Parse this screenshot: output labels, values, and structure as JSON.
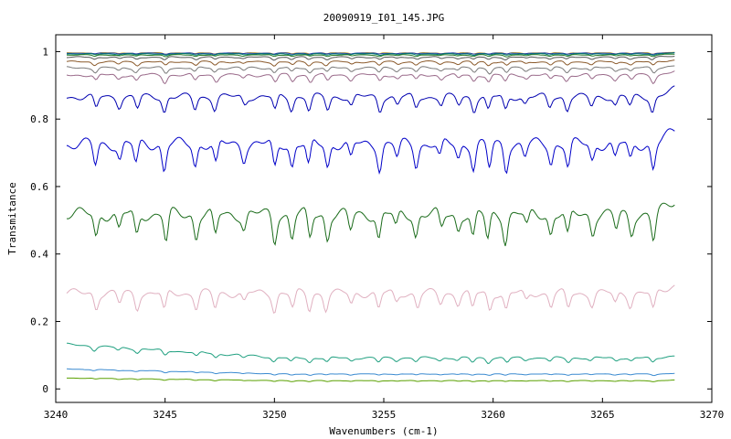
{
  "chart_data": {
    "type": "line",
    "title": "20090919_I01_145.JPG",
    "xlabel": "Wavenumbers (cm-1)",
    "ylabel": "Transmitance",
    "xlim": [
      3240,
      3270
    ],
    "ylim": [
      -0.04,
      1.05
    ],
    "x_ticks": [
      3240,
      3245,
      3250,
      3255,
      3260,
      3265,
      3270
    ],
    "y_ticks": [
      0,
      0.2,
      0.4,
      0.6,
      0.8,
      1
    ],
    "x_tick_labels": [
      "3240",
      "3245",
      "3250",
      "3255",
      "3260",
      "3265",
      "3270"
    ],
    "y_tick_labels": [
      "0",
      "0.2",
      "0.4",
      "0.6",
      "0.8",
      "1"
    ],
    "grid": false,
    "legend": "none",
    "x_range_data": [
      3240.5,
      3268.3
    ],
    "series": [
      {
        "color": "#d4a017",
        "base": 0.997,
        "depth": 0.004
      },
      {
        "color": "#1f3fae",
        "base": 0.996,
        "depth": 0.003
      },
      {
        "color": "#007a6a",
        "base": 0.994,
        "depth": 0.004
      },
      {
        "color": "#2b7a2b",
        "base": 0.991,
        "depth": 0.005
      },
      {
        "color": "#555555",
        "base": 0.985,
        "depth": 0.008
      },
      {
        "color": "#8b5a2b",
        "base": 0.972,
        "depth": 0.012
      },
      {
        "color": "#7a7a7a",
        "base": 0.955,
        "depth": 0.016
      },
      {
        "color": "#9a6a8a",
        "base": 0.935,
        "depth": 0.022
      },
      {
        "color": "#0000b0",
        "base": 0.875,
        "depth": 0.045
      },
      {
        "color": "#0000c8",
        "base": 0.742,
        "depth": 0.08
      },
      {
        "color": "#1a6b1a",
        "base": 0.535,
        "depth": 0.085
      },
      {
        "color": "#e0b0c0",
        "base": 0.295,
        "depth": 0.055
      },
      {
        "color": "#20a080",
        "base": 0.135,
        "depth": 0.015,
        "drift": -0.04
      },
      {
        "color": "#3a8ad0",
        "base": 0.06,
        "depth": 0.004,
        "drift": -0.015
      },
      {
        "color": "#5aa000",
        "base": 0.033,
        "depth": 0.003,
        "drift": -0.008
      }
    ]
  }
}
